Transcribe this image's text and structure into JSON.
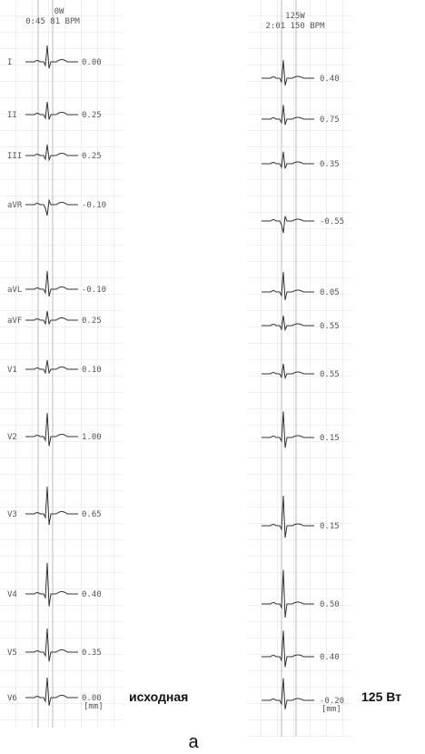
{
  "left": {
    "header": [
      "0W",
      "0:45  81  BPM"
    ],
    "leads": [
      {
        "label": "I",
        "value": "0.00"
      },
      {
        "label": "II",
        "value": "0.25"
      },
      {
        "label": "III",
        "value": "0.25"
      },
      {
        "label": "aVR",
        "value": "-0.10"
      },
      {
        "label": "aVL",
        "value": "-0.10"
      },
      {
        "label": "aVF",
        "value": "0.25"
      },
      {
        "label": "V1",
        "value": "0.10"
      },
      {
        "label": "V2",
        "value": "1.00"
      },
      {
        "label": "V3",
        "value": "0.65"
      },
      {
        "label": "V4",
        "value": "0.40"
      },
      {
        "label": "V5",
        "value": "0.35"
      },
      {
        "label": "V6",
        "value": "0.00"
      }
    ],
    "unit": "[mm]",
    "caption": "исходная"
  },
  "right": {
    "header": [
      "125W",
      "2:01  150  BPM"
    ],
    "leads": [
      {
        "value": "0.40"
      },
      {
        "value": "0.75"
      },
      {
        "value": "0.35"
      },
      {
        "value": "-0.55"
      },
      {
        "value": "0.05"
      },
      {
        "value": "0.55"
      },
      {
        "value": "0.55"
      },
      {
        "value": "0.15"
      },
      {
        "value": "0.15"
      },
      {
        "value": "0.50"
      },
      {
        "value": "0.40"
      },
      {
        "value": "-0.20"
      }
    ],
    "unit": "[mm]",
    "caption": "125 Вт"
  },
  "figure_label": "а"
}
